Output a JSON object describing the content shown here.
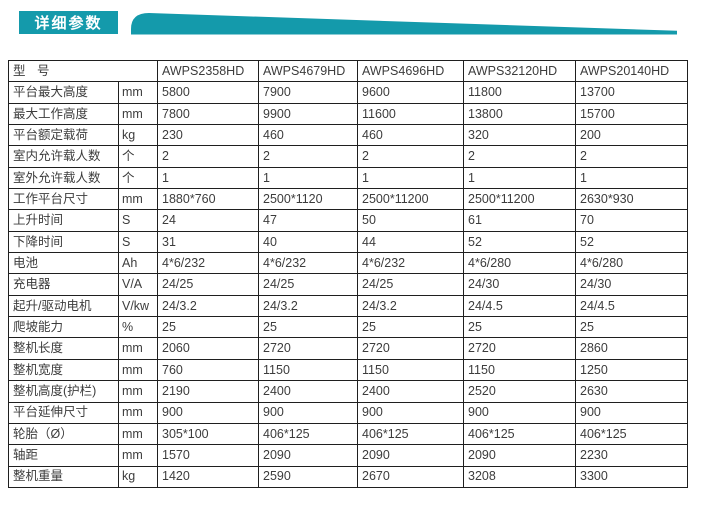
{
  "colors": {
    "accent": "#149aab",
    "border": "#1f1f1f",
    "text": "#3c3c3c"
  },
  "header": {
    "title": "详细参数"
  },
  "table": {
    "header": {
      "model_label": "型 号",
      "models": [
        "AWPS2358HD",
        "AWPS4679HD",
        "AWPS4696HD",
        "AWPS32120HD",
        "AWPS20140HD"
      ]
    },
    "rows": [
      {
        "label": "平台最大高度",
        "unit": "mm",
        "values": [
          "5800",
          "7900",
          "9600",
          "11800",
          "13700"
        ]
      },
      {
        "label": "最大工作高度",
        "unit": "mm",
        "values": [
          "7800",
          "9900",
          "11600",
          "13800",
          "15700"
        ]
      },
      {
        "label": "平台额定载荷",
        "unit": "kg",
        "values": [
          "230",
          "460",
          "460",
          "320",
          "200"
        ]
      },
      {
        "label": "室内允许载人数",
        "unit": "个",
        "values": [
          "2",
          "2",
          "2",
          "2",
          "2"
        ]
      },
      {
        "label": "室外允许载人数",
        "unit": "个",
        "values": [
          "1",
          "1",
          "1",
          "1",
          "1"
        ]
      },
      {
        "label": "工作平台尺寸",
        "unit": "mm",
        "values": [
          "1880*760",
          "2500*1120",
          "2500*11200",
          "2500*11200",
          "2630*930"
        ]
      },
      {
        "label": "上升时间",
        "unit": "S",
        "values": [
          "24",
          "47",
          "50",
          "61",
          "70"
        ]
      },
      {
        "label": "下降时间",
        "unit": "S",
        "values": [
          "31",
          "40",
          "44",
          "52",
          "52"
        ]
      },
      {
        "label": "电池",
        "unit": "Ah",
        "values": [
          "4*6/232",
          "4*6/232",
          "4*6/232",
          "4*6/280",
          "4*6/280"
        ]
      },
      {
        "label": "充电器",
        "unit": "V/A",
        "values": [
          "24/25",
          "24/25",
          "24/25",
          "24/30",
          "24/30"
        ]
      },
      {
        "label": "起升/驱动电机",
        "unit": "V/kw",
        "values": [
          "24/3.2",
          "24/3.2",
          "24/3.2",
          "24/4.5",
          "24/4.5"
        ]
      },
      {
        "label": "爬坡能力",
        "unit": "%",
        "values": [
          "25",
          "25",
          "25",
          "25",
          "25"
        ]
      },
      {
        "label": "整机长度",
        "unit": "mm",
        "values": [
          "2060",
          "2720",
          "2720",
          "2720",
          "2860"
        ]
      },
      {
        "label": "整机宽度",
        "unit": "mm",
        "values": [
          "760",
          "1150",
          "1150",
          "1150",
          "1250"
        ]
      },
      {
        "label": "整机高度(护栏)",
        "unit": "mm",
        "values": [
          "2190",
          "2400",
          "2400",
          "2520",
          "2630"
        ]
      },
      {
        "label": "平台延伸尺寸",
        "unit": "mm",
        "values": [
          "900",
          "900",
          "900",
          "900",
          "900"
        ]
      },
      {
        "label": "轮胎（Ø）",
        "unit": "mm",
        "values": [
          "305*100",
          "406*125",
          "406*125",
          "406*125",
          "406*125"
        ]
      },
      {
        "label": "轴距",
        "unit": "mm",
        "values": [
          "1570",
          "2090",
          "2090",
          "2090",
          "2230"
        ]
      },
      {
        "label": "整机重量",
        "unit": "kg",
        "values": [
          "1420",
          "2590",
          "2670",
          "3208",
          "3300"
        ]
      }
    ]
  }
}
